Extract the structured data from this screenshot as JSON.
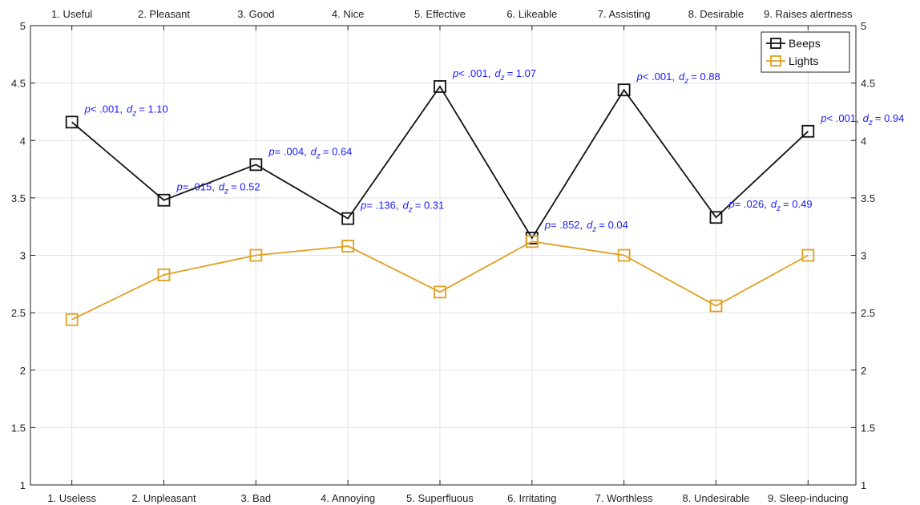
{
  "chart_data": {
    "type": "line",
    "x": [
      1,
      2,
      3,
      4,
      5,
      6,
      7,
      8,
      9
    ],
    "top_categories": [
      "1. Useful",
      "2. Pleasant",
      "3. Good",
      "4. Nice",
      "5. Effective",
      "6. Likeable",
      "7. Assisting",
      "8. Desirable",
      "9. Raises alertness"
    ],
    "bottom_categories": [
      "1. Useless",
      "2. Unpleasant",
      "3. Bad",
      "4. Annoying",
      "5. Superfluous",
      "6. Irritating",
      "7. Worthless",
      "8. Undesirable",
      "9. Sleep-inducing"
    ],
    "ylim": [
      1,
      5
    ],
    "yticks": [
      1,
      1.5,
      2,
      2.5,
      3,
      3.5,
      4,
      4.5,
      5
    ],
    "ytick_labels": [
      "1",
      "1.5",
      "2",
      "2.5",
      "3",
      "3.5",
      "4",
      "4.5",
      "5"
    ],
    "grid": true,
    "legend_position": "top-right",
    "series": [
      {
        "name": "Beeps",
        "color": "#111111",
        "values": [
          4.16,
          3.48,
          3.79,
          3.32,
          4.47,
          3.15,
          4.44,
          3.33,
          4.08
        ]
      },
      {
        "name": "Lights",
        "color": "#e0a020",
        "values": [
          2.44,
          2.83,
          3.0,
          3.08,
          2.68,
          3.12,
          3.0,
          2.56,
          3.0
        ]
      }
    ],
    "annotations": [
      {
        "x": 1,
        "y": 4.16,
        "p": "< .001,",
        "d": "= 1.10"
      },
      {
        "x": 2,
        "y": 3.48,
        "p": "= .015,",
        "d": "= 0.52"
      },
      {
        "x": 3,
        "y": 3.79,
        "p": "= .004,",
        "d": "= 0.64"
      },
      {
        "x": 4,
        "y": 3.32,
        "p": "= .136,",
        "d": "= 0.31"
      },
      {
        "x": 5,
        "y": 4.47,
        "p": "< .001,",
        "d": "= 1.07"
      },
      {
        "x": 6,
        "y": 3.15,
        "p": "= .852,",
        "d": "= 0.04"
      },
      {
        "x": 7,
        "y": 4.44,
        "p": "< .001,",
        "d": "= 0.88"
      },
      {
        "x": 8,
        "y": 3.33,
        "p": "= .026,",
        "d": "= 0.49"
      },
      {
        "x": 9,
        "y": 4.08,
        "p": "< .001,",
        "d": "= 0.94"
      }
    ],
    "annotation_p_letter": "p",
    "annotation_d_letter": "d",
    "annotation_d_subscript": "z"
  }
}
